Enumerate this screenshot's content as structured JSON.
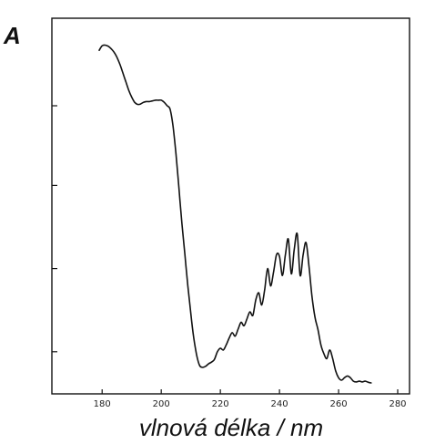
{
  "chart_data": {
    "type": "line",
    "panel_label": "A",
    "title": "",
    "xlabel": "vlnová délka / nm",
    "ylabel": "",
    "xlim": [
      163,
      284
    ],
    "ylim": [
      0,
      100
    ],
    "x_ticks": [
      180,
      200,
      220,
      240,
      260,
      280
    ],
    "x_tick_labels": [
      "180",
      "200",
      "220",
      "240",
      "260",
      "280"
    ],
    "y_ticks": [
      9,
      33,
      57,
      80
    ],
    "y_tick_labels": [],
    "grid": false,
    "legend": "none",
    "line_color": "#111111",
    "series": [
      {
        "x": [
          179,
          180,
          181,
          182,
          183,
          184,
          185,
          186,
          187,
          188,
          189,
          190,
          191,
          192,
          193,
          194,
          195,
          196,
          197,
          198,
          199,
          200,
          201,
          202,
          203,
          204,
          205,
          206,
          207,
          208,
          209,
          210,
          211,
          212,
          213,
          214,
          215,
          216,
          217,
          218,
          219,
          220,
          221,
          222,
          223,
          224,
          225,
          226,
          227,
          228,
          229,
          230,
          231,
          232,
          233,
          234,
          235,
          236,
          237,
          238,
          239,
          240,
          241,
          242,
          243,
          244,
          245,
          246,
          247,
          248,
          249,
          250,
          251,
          252,
          253,
          254,
          255,
          256,
          257,
          258,
          259,
          260,
          261,
          262,
          263,
          264,
          265,
          266,
          267,
          268,
          269,
          270,
          271
        ],
        "y": [
          96,
          97.3,
          97.5,
          97.2,
          96.5,
          95.5,
          94,
          92,
          89.5,
          87,
          84.5,
          82.5,
          81,
          80.4,
          80.5,
          81,
          81.2,
          81.2,
          81.4,
          81.6,
          81.6,
          81.6,
          81,
          80,
          79,
          74,
          66,
          56,
          46,
          37,
          28,
          20,
          13,
          8,
          5,
          4.5,
          4.8,
          5.5,
          6,
          6.8,
          9,
          10,
          9.5,
          11,
          13,
          14.5,
          13.5,
          15.5,
          17.5,
          16.5,
          18.5,
          20.5,
          19.5,
          24,
          26,
          22.5,
          27,
          33,
          28,
          32,
          37,
          36.5,
          31,
          37,
          41.5,
          31.5,
          38.5,
          43,
          31,
          37,
          40.5,
          33.5,
          25,
          19,
          15.5,
          11,
          8.5,
          7,
          9.5,
          7,
          3.5,
          1.5,
          0.8,
          1.5,
          2,
          1.5,
          0.5,
          0.3,
          0.5,
          0.3,
          0.5,
          0.2,
          0
        ]
      }
    ]
  }
}
